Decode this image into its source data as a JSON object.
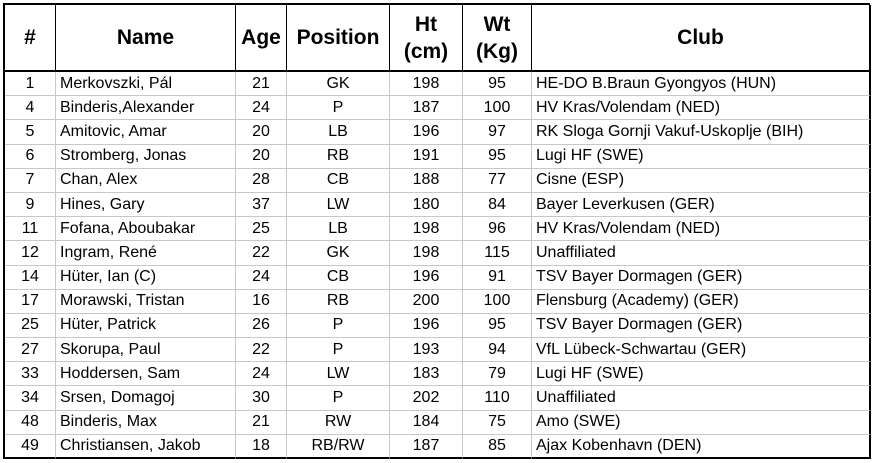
{
  "columns": [
    {
      "label": "#"
    },
    {
      "label": "Name"
    },
    {
      "label": "Age"
    },
    {
      "label": "Position"
    },
    {
      "label": "Ht",
      "label2": "(cm)"
    },
    {
      "label": "Wt",
      "label2": "(Kg)"
    },
    {
      "label": "Club"
    }
  ],
  "rows": [
    {
      "num": "1",
      "name": "Merkovszki, Pál",
      "age": "21",
      "pos": "GK",
      "ht": "198",
      "wt": "95",
      "club": "HE-DO B.Braun Gyongyos (HUN)"
    },
    {
      "num": "4",
      "name": "Binderis,Alexander",
      "age": "24",
      "pos": "P",
      "ht": "187",
      "wt": "100",
      "club": "HV Kras/Volendam (NED)"
    },
    {
      "num": "5",
      "name": "Amitovic, Amar",
      "age": "20",
      "pos": "LB",
      "ht": "196",
      "wt": "97",
      "club": "RK Sloga Gornji Vakuf-Uskoplje (BIH)"
    },
    {
      "num": "6",
      "name": "Stromberg, Jonas",
      "age": "20",
      "pos": "RB",
      "ht": "191",
      "wt": "95",
      "club": "Lugi HF (SWE)"
    },
    {
      "num": "7",
      "name": "Chan, Alex",
      "age": "28",
      "pos": "CB",
      "ht": "188",
      "wt": "77",
      "club": "Cisne (ESP)"
    },
    {
      "num": "9",
      "name": "Hines, Gary",
      "age": "37",
      "pos": "LW",
      "ht": "180",
      "wt": "84",
      "club": "Bayer Leverkusen (GER)"
    },
    {
      "num": "11",
      "name": "Fofana, Aboubakar",
      "age": "25",
      "pos": "LB",
      "ht": "198",
      "wt": "96",
      "club": "HV Kras/Volendam (NED)"
    },
    {
      "num": "12",
      "name": "Ingram, René",
      "age": "22",
      "pos": "GK",
      "ht": "198",
      "wt": "115",
      "club": "Unaffiliated"
    },
    {
      "num": "14",
      "name": "Hüter, Ian (C)",
      "age": "24",
      "pos": "CB",
      "ht": "196",
      "wt": "91",
      "club": "TSV Bayer Dormagen (GER)"
    },
    {
      "num": "17",
      "name": "Morawski, Tristan",
      "age": "16",
      "pos": "RB",
      "ht": "200",
      "wt": "100",
      "club": "Flensburg (Academy) (GER)"
    },
    {
      "num": "25",
      "name": "Hüter, Patrick",
      "age": "26",
      "pos": "P",
      "ht": "196",
      "wt": "95",
      "club": "TSV Bayer Dormagen (GER)"
    },
    {
      "num": "27",
      "name": "Skorupa, Paul",
      "age": "22",
      "pos": "P",
      "ht": "193",
      "wt": "94",
      "club": "VfL Lübeck-Schwartau (GER)"
    },
    {
      "num": "33",
      "name": "Hoddersen, Sam",
      "age": "24",
      "pos": "LW",
      "ht": "183",
      "wt": "79",
      "club": "Lugi HF (SWE)"
    },
    {
      "num": "34",
      "name": "Srsen, Domagoj",
      "age": "30",
      "pos": "P",
      "ht": "202",
      "wt": "110",
      "club": "Unaffiliated"
    },
    {
      "num": "48",
      "name": "Binderis, Max",
      "age": "21",
      "pos": "RW",
      "ht": "184",
      "wt": "75",
      "club": "Amo (SWE)"
    },
    {
      "num": "49",
      "name": "Christiansen, Jakob",
      "age": "18",
      "pos": "RB/RW",
      "ht": "187",
      "wt": "85",
      "club": "Ajax Kobenhavn (DEN)"
    }
  ]
}
